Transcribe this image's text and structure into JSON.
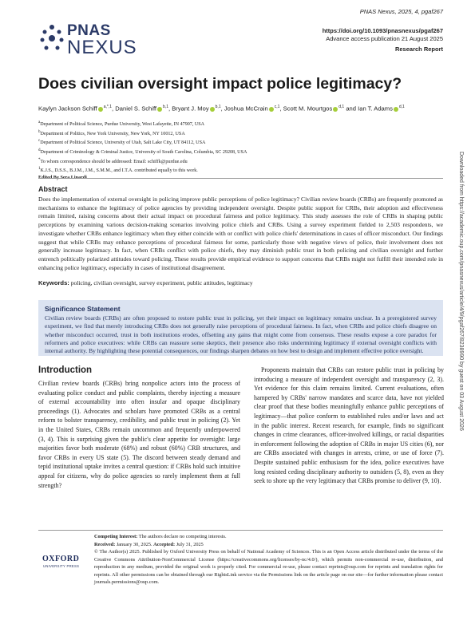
{
  "logo": {
    "top": "PNAS",
    "bottom": "NEXUS"
  },
  "header": {
    "citation": "PNAS Nexus, 2025, 4, pgaf267",
    "doi": "https://doi.org/10.1093/pnasnexus/pgaf267",
    "advance": "Advance access publication 21 August 2025",
    "article_type": "Research Report"
  },
  "title": "Does civilian oversight impact police legitimacy?",
  "authors": [
    {
      "name": "Kaylyn Jackson Schiff",
      "sup": "a,*,1"
    },
    {
      "name": "Daniel S. Schiff",
      "sup": "b,1"
    },
    {
      "name": "Bryant J. Moy",
      "sup": "b,1"
    },
    {
      "name": "Joshua McCrain",
      "sup": "c,1"
    },
    {
      "name": "Scott M. Mourtgos",
      "sup": "d,1"
    },
    {
      "name": "Ian T. Adams",
      "sup": "d,1"
    }
  ],
  "author_conjunction": "and",
  "affiliations": [
    {
      "sup": "a",
      "text": "Department of Political Science, Purdue University, West Lafayette, IN 47907, USA"
    },
    {
      "sup": "b",
      "text": "Department of Politics, New York University, New York, NY 10012, USA"
    },
    {
      "sup": "c",
      "text": "Department of Political Science, University of Utah, Salt Lake City, UT 84112, USA"
    },
    {
      "sup": "d",
      "text": "Department of Criminology & Criminal Justice, University of South Carolina, Columbia, SC 29208, USA"
    },
    {
      "sup": "*",
      "text": "To whom correspondence should be addressed: Email: schiffk@purdue.edu"
    },
    {
      "sup": "1",
      "text": "K.J.S., D.S.S., B.J.M., J.M., S.M.M., and I.T.A. contributed equally to this work."
    }
  ],
  "edited_by": {
    "label": "Edited By",
    "name": "Sera Linardi"
  },
  "abstract": {
    "heading": "Abstract",
    "text": "Does the implementation of external oversight in policing improve public perceptions of police legitimacy? Civilian review boards (CRBs) are frequently promoted as mechanisms to enhance the legitimacy of police agencies by providing independent oversight. Despite public support for CRBs, their adoption and effectiveness remain limited, raising concerns about their actual impact on procedural fairness and police legitimacy. This study assesses the role of CRBs in shaping public perceptions by examining various decision-making scenarios involving police chiefs and CRBs. Using a survey experiment fielded to 2,503 respondents, we investigate whether CRBs enhance legitimacy when they either coincide with or conflict with police chiefs' determinations in cases of officer misconduct. Our findings suggest that while CRBs may enhance perceptions of procedural fairness for some, particularly those with negative views of police, their involvement does not generally increase legitimacy. In fact, when CRBs conflict with police chiefs, they may diminish public trust in both policing and civilian oversight and further entrench politically polarized attitudes toward policing. These results provide empirical evidence to support concerns that CRBs might not fulfill their intended role in enhancing police legitimacy, especially in cases of institutional disagreement."
  },
  "keywords": {
    "label": "Keywords:",
    "text": "policing, civilian oversight, survey experiment, public attitudes, legitimacy"
  },
  "significance": {
    "heading": "Significance Statement",
    "text": "Civilian review boards (CRBs) are often proposed to restore public trust in policing, yet their impact on legitimacy remains unclear. In a preregistered survey experiment, we find that merely introducing CRBs does not generally raise perceptions of procedural fairness. In fact, when CRBs and police chiefs disagree on whether misconduct occurred, trust in both institutions erodes, offsetting any gains that might come from consensus. These results expose a core paradox for reformers and police executives: while CRBs can reassure some skeptics, their presence also risks undermining legitimacy if external oversight conflicts with internal authority. By highlighting these potential consequences, our findings sharpen debates on how best to design and implement effective police oversight."
  },
  "introduction": {
    "heading": "Introduction",
    "paragraphs": [
      "Civilian review boards (CRBs) bring nonpolice actors into the process of evaluating police conduct and public complaints, thereby injecting a measure of external accountability into often insular and opaque disciplinary proceedings (1). Advocates and scholars have promoted CRBs as a central reform to bolster transparency, credibility, and public trust in policing (2). Yet in the United States, CRBs remain uncommon and frequently underpowered (3, 4). This is surprising given the public's clear appetite for oversight: large majorities favor both moderate (68%) and robust (60%) CRB structures, and favor CRBs in every US state (5). The discord between steady demand and tepid institutional uptake invites a central question: if CRBs hold such intuitive appeal for citizens, why do police agencies so rarely implement them at full strength?",
      "Proponents maintain that CRBs can restore public trust in policing by introducing a measure of independent oversight and transparency (2, 3). Yet evidence for this claim remains limited. Current evaluations, often hampered by CRBs' narrow mandates and scarce data, have not yielded clear proof that these bodies meaningfully enhance public perceptions of legitimacy—that police conform to established rules and/or laws and act in the public interest. Recent research, for example, finds no significant changes in crime clearances, officer-involved killings, or racial disparities in enforcement following the adoption of CRBs in major US cities (6), nor are CRBs associated with changes in arrests, crime, or use of force (7). Despite sustained public enthusiasm for the idea, police executives have long resisted ceding disciplinary authority to outsiders (5, 8), even as they seek to shore up the very legitimacy that CRBs promise to deliver (9, 10)."
    ]
  },
  "footer": {
    "competing": {
      "label": "Competing Interest:",
      "text": "The authors declare no competing interests."
    },
    "received": {
      "label": "Received:",
      "date": "January 30, 2025.",
      "accepted_label": "Accepted:",
      "accepted_date": "July 31, 2025"
    },
    "license": "© The Author(s) 2025. Published by Oxford University Press on behalf of National Academy of Sciences. This is an Open Access article distributed under the terms of the Creative Commons Attribution-NonCommercial License (https://creativecommons.org/licenses/by-nc/4.0/), which permits non-commercial re-use, distribution, and reproduction in any medium, provided the original work is properly cited. For commercial re-use, please contact reprints@oup.com for reprints and translation rights for reprints. All other permissions can be obtained through our RightsLink service via the Permissions link on the article page on our site—for further information please contact journals.permissions@oup.com."
  },
  "publisher_logo": {
    "name": "OXFORD",
    "sub": "UNIVERSITY PRESS"
  },
  "download_note": "Downloaded from https://academic.oup.com/pnasnexus/article/4/9/pgaf267/8238990 by guest on 03 August 2026"
}
